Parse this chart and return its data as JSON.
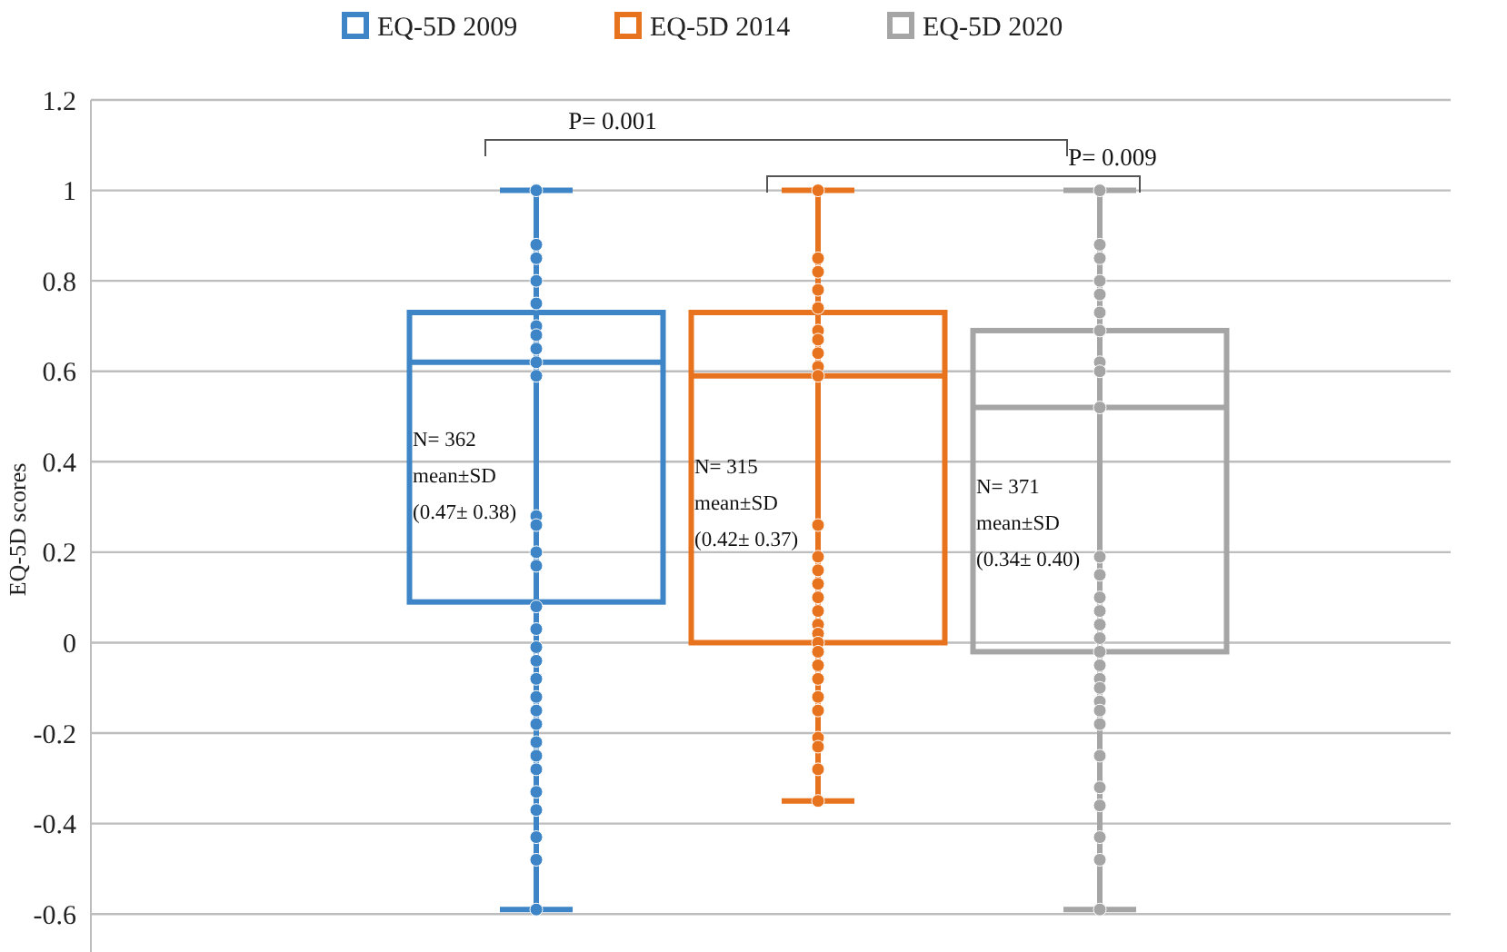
{
  "chart_data": {
    "type": "box",
    "ylabel": "EQ-5D scores",
    "categories": [
      null
    ],
    "ylim": [
      -0.7,
      1.2
    ],
    "yticks": [
      -0.6,
      -0.4,
      -0.2,
      0,
      0.2,
      0.4,
      0.6,
      0.8,
      1,
      1.2
    ],
    "grid": "y",
    "legend": "top",
    "series": [
      {
        "name": "EQ-5D 2009",
        "color": "#3d85c6",
        "boxes": [
          {
            "low": -0.59,
            "q1": 0.09,
            "median": 0.62,
            "q3": 0.73,
            "high": 1,
            "outliers": [
              1,
              0.88,
              0.85,
              0.8,
              0.75,
              0.7,
              0.68,
              0.65,
              0.62,
              0.59,
              0.28,
              0.26,
              0.2,
              0.17,
              0.08,
              0.03,
              -0.01,
              -0.04,
              -0.08,
              -0.12,
              -0.15,
              -0.18,
              -0.22,
              -0.25,
              -0.28,
              -0.33,
              -0.37,
              -0.43,
              -0.48,
              -0.59
            ]
          }
        ]
      },
      {
        "name": "EQ-5D 2014",
        "color": "#e8731f",
        "boxes": [
          {
            "low": -0.35,
            "q1": 0,
            "median": 0.59,
            "q3": 0.73,
            "high": 1,
            "outliers": [
              1,
              0.85,
              0.82,
              0.78,
              0.74,
              0.69,
              0.67,
              0.64,
              0.61,
              0.59,
              0.26,
              0.19,
              0.16,
              0.13,
              0.1,
              0.07,
              0.04,
              0.02,
              0,
              -0.02,
              -0.05,
              -0.08,
              -0.12,
              -0.15,
              -0.21,
              -0.23,
              -0.28,
              -0.35
            ]
          }
        ]
      },
      {
        "name": "EQ-5D 2020",
        "color": "#a5a5a5",
        "boxes": [
          {
            "low": -0.59,
            "q1": -0.02,
            "median": 0.52,
            "q3": 0.69,
            "high": 1,
            "outliers": [
              1,
              0.88,
              0.85,
              0.8,
              0.77,
              0.73,
              0.69,
              0.62,
              0.6,
              0.52,
              0.19,
              0.15,
              0.1,
              0.07,
              0.04,
              0.01,
              -0.02,
              -0.05,
              -0.08,
              -0.1,
              -0.13,
              -0.15,
              -0.18,
              -0.25,
              -0.32,
              -0.36,
              -0.43,
              -0.48,
              -0.59
            ]
          }
        ]
      }
    ],
    "annotations": [
      "N= 362\nmean±SD\n(0.47± 0.38)",
      "N= 315\nmean±SD\n(0.42± 0.37)",
      "N= 371\nmean±SD\n(0.34± 0.40)",
      "P= 0.001",
      "P= 0.009"
    ]
  }
}
